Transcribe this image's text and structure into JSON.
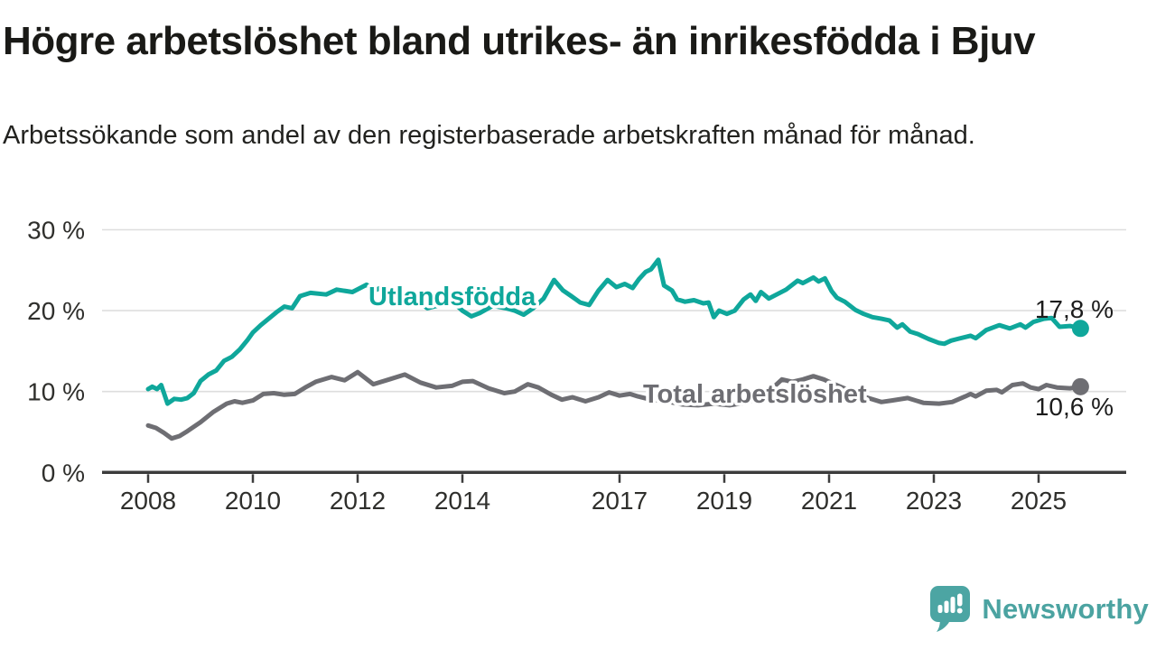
{
  "header": {
    "title": "Högre arbetslöshet bland utrikes- än inrikesfödda i Bjuv",
    "subtitle": "Arbetssökande som andel av den registerbaserade arbetskraften månad för månad."
  },
  "branding": {
    "logo_text": "Newsworthy",
    "logo_icon": "bar-chart-speech-bubble-icon",
    "logo_color": "#4BA3A1"
  },
  "colors": {
    "foreign_born_line": "#0FA79B",
    "total_line": "#6E6E73",
    "gridline": "#dedede",
    "axis": "#3c3c3c",
    "tick_label": "#2f2f2c",
    "end_label": "#1c1c1c"
  },
  "chart_data": {
    "type": "line",
    "title": "Högre arbetslöshet bland utrikes- än inrikesfödda i Bjuv",
    "subtitle": "Arbetssökande som andel av den registerbaserade arbetskraften månad för månad.",
    "x_axis": {
      "ticks": [
        2008,
        2010,
        2012,
        2014,
        2017,
        2019,
        2021,
        2023,
        2025
      ],
      "range": [
        2007.1,
        2026.7
      ]
    },
    "y_axis": {
      "ticks": [
        0,
        10,
        20,
        30
      ],
      "suffix": " %",
      "range": [
        0,
        30
      ],
      "grid": true
    },
    "legend_position": "inline-labels",
    "series": [
      {
        "name": "Utlandsfödda",
        "color": "#0FA79B",
        "end_label": "17,8 %",
        "end_value": 17.8,
        "points": [
          [
            2008.0,
            10.3
          ],
          [
            2008.08,
            10.6
          ],
          [
            2008.17,
            10.3
          ],
          [
            2008.25,
            10.8
          ],
          [
            2008.37,
            8.5
          ],
          [
            2008.5,
            9.1
          ],
          [
            2008.63,
            9.0
          ],
          [
            2008.75,
            9.2
          ],
          [
            2008.87,
            9.8
          ],
          [
            2009.0,
            11.3
          ],
          [
            2009.15,
            12.1
          ],
          [
            2009.3,
            12.6
          ],
          [
            2009.45,
            13.8
          ],
          [
            2009.6,
            14.3
          ],
          [
            2009.75,
            15.2
          ],
          [
            2009.9,
            16.4
          ],
          [
            2010.0,
            17.3
          ],
          [
            2010.15,
            18.2
          ],
          [
            2010.3,
            19.0
          ],
          [
            2010.45,
            19.8
          ],
          [
            2010.6,
            20.5
          ],
          [
            2010.75,
            20.3
          ],
          [
            2010.9,
            21.8
          ],
          [
            2011.1,
            22.2
          ],
          [
            2011.4,
            22.0
          ],
          [
            2011.6,
            22.6
          ],
          [
            2011.9,
            22.3
          ],
          [
            2012.17,
            23.2
          ],
          [
            2012.33,
            22.5
          ],
          [
            2012.5,
            23.0
          ],
          [
            2012.75,
            22.4
          ],
          [
            2012.92,
            20.7
          ],
          [
            2013.1,
            21.4
          ],
          [
            2013.33,
            20.3
          ],
          [
            2013.58,
            20.7
          ],
          [
            2013.83,
            21.0
          ],
          [
            2014.0,
            20.0
          ],
          [
            2014.17,
            19.3
          ],
          [
            2014.33,
            19.7
          ],
          [
            2014.58,
            20.6
          ],
          [
            2014.83,
            20.3
          ],
          [
            2015.0,
            20.0
          ],
          [
            2015.17,
            19.5
          ],
          [
            2015.35,
            20.3
          ],
          [
            2015.55,
            21.5
          ],
          [
            2015.75,
            23.8
          ],
          [
            2015.92,
            22.5
          ],
          [
            2016.08,
            21.8
          ],
          [
            2016.25,
            21.0
          ],
          [
            2016.42,
            20.7
          ],
          [
            2016.6,
            22.5
          ],
          [
            2016.77,
            23.8
          ],
          [
            2016.94,
            22.9
          ],
          [
            2017.1,
            23.3
          ],
          [
            2017.25,
            22.8
          ],
          [
            2017.37,
            23.9
          ],
          [
            2017.5,
            24.8
          ],
          [
            2017.6,
            25.1
          ],
          [
            2017.74,
            26.3
          ],
          [
            2017.85,
            23.1
          ],
          [
            2018.0,
            22.5
          ],
          [
            2018.1,
            21.4
          ],
          [
            2018.25,
            21.1
          ],
          [
            2018.42,
            21.3
          ],
          [
            2018.6,
            20.9
          ],
          [
            2018.7,
            21.0
          ],
          [
            2018.8,
            19.2
          ],
          [
            2018.9,
            20.0
          ],
          [
            2019.05,
            19.6
          ],
          [
            2019.2,
            20.0
          ],
          [
            2019.37,
            21.4
          ],
          [
            2019.5,
            22.0
          ],
          [
            2019.6,
            21.2
          ],
          [
            2019.7,
            22.3
          ],
          [
            2019.85,
            21.5
          ],
          [
            2020.0,
            22.0
          ],
          [
            2020.18,
            22.6
          ],
          [
            2020.4,
            23.7
          ],
          [
            2020.5,
            23.4
          ],
          [
            2020.7,
            24.1
          ],
          [
            2020.8,
            23.6
          ],
          [
            2020.92,
            24.0
          ],
          [
            2021.05,
            22.4
          ],
          [
            2021.15,
            21.6
          ],
          [
            2021.3,
            21.1
          ],
          [
            2021.5,
            20.1
          ],
          [
            2021.66,
            19.6
          ],
          [
            2021.83,
            19.2
          ],
          [
            2022.0,
            19.0
          ],
          [
            2022.15,
            18.8
          ],
          [
            2022.3,
            17.9
          ],
          [
            2022.4,
            18.3
          ],
          [
            2022.55,
            17.4
          ],
          [
            2022.7,
            17.1
          ],
          [
            2022.9,
            16.5
          ],
          [
            2023.1,
            16.0
          ],
          [
            2023.2,
            15.9
          ],
          [
            2023.33,
            16.3
          ],
          [
            2023.45,
            16.5
          ],
          [
            2023.7,
            16.9
          ],
          [
            2023.8,
            16.6
          ],
          [
            2024.0,
            17.6
          ],
          [
            2024.25,
            18.2
          ],
          [
            2024.45,
            17.8
          ],
          [
            2024.65,
            18.3
          ],
          [
            2024.75,
            17.9
          ],
          [
            2024.9,
            18.6
          ],
          [
            2025.1,
            19.0
          ],
          [
            2025.25,
            19.1
          ],
          [
            2025.4,
            18.0
          ],
          [
            2025.6,
            18.1
          ],
          [
            2025.8,
            17.8
          ]
        ]
      },
      {
        "name": "Total arbetslöshet",
        "color": "#6E6E73",
        "end_label": "10,6 %",
        "end_value": 10.6,
        "points": [
          [
            2008.0,
            5.8
          ],
          [
            2008.15,
            5.5
          ],
          [
            2008.3,
            4.9
          ],
          [
            2008.45,
            4.2
          ],
          [
            2008.6,
            4.5
          ],
          [
            2008.75,
            5.1
          ],
          [
            2009.0,
            6.2
          ],
          [
            2009.25,
            7.5
          ],
          [
            2009.5,
            8.5
          ],
          [
            2009.65,
            8.8
          ],
          [
            2009.8,
            8.6
          ],
          [
            2010.0,
            8.9
          ],
          [
            2010.2,
            9.7
          ],
          [
            2010.4,
            9.8
          ],
          [
            2010.6,
            9.6
          ],
          [
            2010.8,
            9.7
          ],
          [
            2011.0,
            10.5
          ],
          [
            2011.2,
            11.2
          ],
          [
            2011.5,
            11.8
          ],
          [
            2011.75,
            11.4
          ],
          [
            2012.0,
            12.4
          ],
          [
            2012.3,
            10.9
          ],
          [
            2012.6,
            11.5
          ],
          [
            2012.9,
            12.1
          ],
          [
            2013.2,
            11.1
          ],
          [
            2013.5,
            10.5
          ],
          [
            2013.8,
            10.7
          ],
          [
            2014.0,
            11.2
          ],
          [
            2014.2,
            11.3
          ],
          [
            2014.5,
            10.4
          ],
          [
            2014.8,
            9.8
          ],
          [
            2015.0,
            10.0
          ],
          [
            2015.25,
            10.9
          ],
          [
            2015.45,
            10.5
          ],
          [
            2015.7,
            9.6
          ],
          [
            2015.9,
            9.0
          ],
          [
            2016.1,
            9.3
          ],
          [
            2016.35,
            8.8
          ],
          [
            2016.6,
            9.3
          ],
          [
            2016.8,
            9.9
          ],
          [
            2017.0,
            9.5
          ],
          [
            2017.2,
            9.7
          ],
          [
            2017.35,
            9.4
          ],
          [
            2017.6,
            9.0
          ],
          [
            2017.9,
            8.8
          ],
          [
            2018.2,
            8.4
          ],
          [
            2018.5,
            8.3
          ],
          [
            2018.8,
            8.5
          ],
          [
            2019.1,
            8.3
          ],
          [
            2019.4,
            8.6
          ],
          [
            2019.7,
            9.2
          ],
          [
            2019.9,
            10.3
          ],
          [
            2020.1,
            11.5
          ],
          [
            2020.3,
            11.2
          ],
          [
            2020.5,
            11.5
          ],
          [
            2020.7,
            11.9
          ],
          [
            2020.9,
            11.5
          ],
          [
            2021.1,
            10.9
          ],
          [
            2021.4,
            10.1
          ],
          [
            2021.7,
            9.3
          ],
          [
            2022.0,
            8.7
          ],
          [
            2022.2,
            8.9
          ],
          [
            2022.5,
            9.2
          ],
          [
            2022.8,
            8.6
          ],
          [
            2023.1,
            8.5
          ],
          [
            2023.35,
            8.7
          ],
          [
            2023.6,
            9.4
          ],
          [
            2023.7,
            9.7
          ],
          [
            2023.8,
            9.4
          ],
          [
            2024.0,
            10.1
          ],
          [
            2024.2,
            10.2
          ],
          [
            2024.3,
            9.9
          ],
          [
            2024.5,
            10.8
          ],
          [
            2024.7,
            11.0
          ],
          [
            2024.85,
            10.5
          ],
          [
            2025.0,
            10.3
          ],
          [
            2025.15,
            10.8
          ],
          [
            2025.35,
            10.5
          ],
          [
            2025.6,
            10.4
          ],
          [
            2025.8,
            10.6
          ]
        ]
      }
    ]
  }
}
